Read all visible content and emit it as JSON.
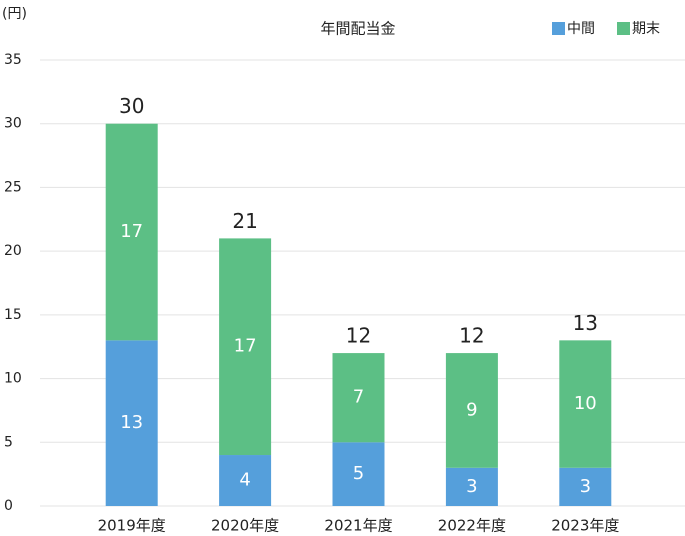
{
  "chart_data": {
    "type": "bar",
    "stacked": true,
    "title": "年間配当金",
    "y_unit_label": "(円)",
    "categories": [
      "2019年度",
      "2020年度",
      "2021年度",
      "2022年度",
      "2023年度"
    ],
    "series": [
      {
        "name": "中間",
        "color": "#559fdb",
        "values": [
          13,
          4,
          5,
          3,
          3
        ]
      },
      {
        "name": "期末",
        "color": "#5cbf85",
        "values": [
          17,
          17,
          7,
          9,
          10
        ]
      }
    ],
    "totals": [
      30,
      21,
      12,
      12,
      13
    ],
    "ylim": [
      0,
      35
    ],
    "yticks": [
      0,
      5,
      10,
      15,
      20,
      25,
      30,
      35
    ],
    "grid": true
  }
}
